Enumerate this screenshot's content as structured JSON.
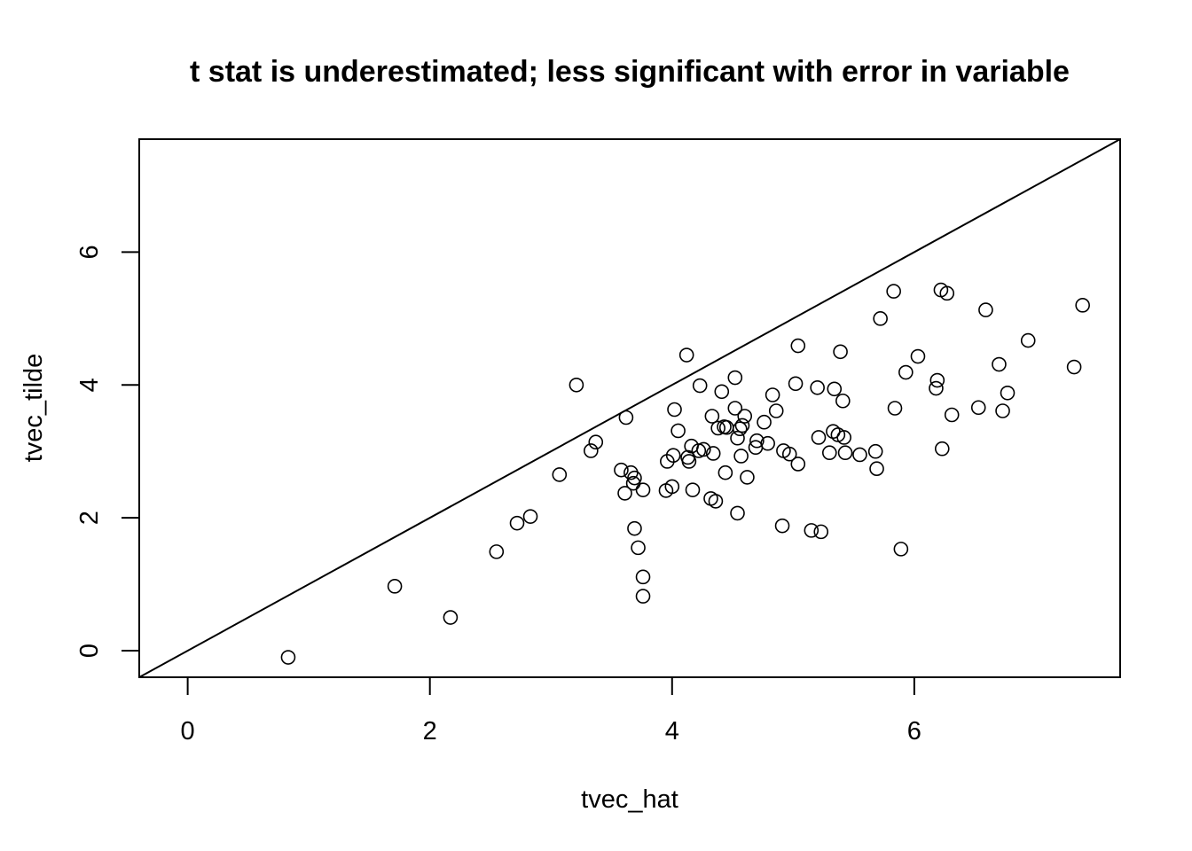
{
  "chart_data": {
    "type": "scatter",
    "title": "t stat is underestimated; less significant with error in variable",
    "xlabel": "tvec_hat",
    "ylabel": "tvec_tilde",
    "xlim": [
      -0.4,
      7.7
    ],
    "ylim": [
      -0.4,
      7.7
    ],
    "xticks": [
      0,
      2,
      4,
      6
    ],
    "yticks": [
      0,
      2,
      4,
      6
    ],
    "xtick_labels": [
      "0",
      "2",
      "4",
      "6"
    ],
    "ytick_labels": [
      "0",
      "2",
      "4",
      "6"
    ],
    "grid": false,
    "reference_line": {
      "slope": 1,
      "intercept": 0
    },
    "points": [
      [
        0.83,
        -0.1
      ],
      [
        1.71,
        0.97
      ],
      [
        2.17,
        0.5
      ],
      [
        2.55,
        1.49
      ],
      [
        2.72,
        1.92
      ],
      [
        2.83,
        2.02
      ],
      [
        3.07,
        2.65
      ],
      [
        3.21,
        4.0
      ],
      [
        3.33,
        3.01
      ],
      [
        3.37,
        3.14
      ],
      [
        3.58,
        2.72
      ],
      [
        3.61,
        2.37
      ],
      [
        3.62,
        3.51
      ],
      [
        3.66,
        2.68
      ],
      [
        3.68,
        2.52
      ],
      [
        3.69,
        2.6
      ],
      [
        3.69,
        1.84
      ],
      [
        3.72,
        1.55
      ],
      [
        3.76,
        2.42
      ],
      [
        3.76,
        1.11
      ],
      [
        3.76,
        0.82
      ],
      [
        3.95,
        2.41
      ],
      [
        3.96,
        2.85
      ],
      [
        4.0,
        2.47
      ],
      [
        4.01,
        2.94
      ],
      [
        4.02,
        3.63
      ],
      [
        4.05,
        3.31
      ],
      [
        4.12,
        4.45
      ],
      [
        4.13,
        2.91
      ],
      [
        4.14,
        2.85
      ],
      [
        4.16,
        3.08
      ],
      [
        4.17,
        2.42
      ],
      [
        4.22,
        3.01
      ],
      [
        4.23,
        3.99
      ],
      [
        4.26,
        3.03
      ],
      [
        4.32,
        2.29
      ],
      [
        4.33,
        3.53
      ],
      [
        4.34,
        2.97
      ],
      [
        4.36,
        2.25
      ],
      [
        4.38,
        3.35
      ],
      [
        4.41,
        3.9
      ],
      [
        4.43,
        3.37
      ],
      [
        4.44,
        2.68
      ],
      [
        4.45,
        3.36
      ],
      [
        4.52,
        4.11
      ],
      [
        4.52,
        3.65
      ],
      [
        4.54,
        3.2
      ],
      [
        4.54,
        2.07
      ],
      [
        4.56,
        3.34
      ],
      [
        4.57,
        2.93
      ],
      [
        4.58,
        3.39
      ],
      [
        4.6,
        3.53
      ],
      [
        4.62,
        2.61
      ],
      [
        4.69,
        3.06
      ],
      [
        4.7,
        3.16
      ],
      [
        4.76,
        3.44
      ],
      [
        4.79,
        3.12
      ],
      [
        4.83,
        3.85
      ],
      [
        4.86,
        3.61
      ],
      [
        4.91,
        1.88
      ],
      [
        4.92,
        3.01
      ],
      [
        4.97,
        2.96
      ],
      [
        5.02,
        4.02
      ],
      [
        5.04,
        4.59
      ],
      [
        5.04,
        2.81
      ],
      [
        5.15,
        1.81
      ],
      [
        5.2,
        3.96
      ],
      [
        5.21,
        3.21
      ],
      [
        5.23,
        1.79
      ],
      [
        5.3,
        2.98
      ],
      [
        5.33,
        3.3
      ],
      [
        5.34,
        3.94
      ],
      [
        5.37,
        3.25
      ],
      [
        5.39,
        4.5
      ],
      [
        5.41,
        3.76
      ],
      [
        5.42,
        3.21
      ],
      [
        5.43,
        2.98
      ],
      [
        5.55,
        2.95
      ],
      [
        5.68,
        3.0
      ],
      [
        5.69,
        2.74
      ],
      [
        5.72,
        5.0
      ],
      [
        5.83,
        5.41
      ],
      [
        5.84,
        3.65
      ],
      [
        5.89,
        1.53
      ],
      [
        5.93,
        4.19
      ],
      [
        6.03,
        4.43
      ],
      [
        6.18,
        3.95
      ],
      [
        6.19,
        4.07
      ],
      [
        6.22,
        5.43
      ],
      [
        6.23,
        3.04
      ],
      [
        6.27,
        5.38
      ],
      [
        6.31,
        3.55
      ],
      [
        6.53,
        3.66
      ],
      [
        6.59,
        5.13
      ],
      [
        6.7,
        4.31
      ],
      [
        6.73,
        3.61
      ],
      [
        6.77,
        3.88
      ],
      [
        6.94,
        4.67
      ],
      [
        7.32,
        4.27
      ],
      [
        7.39,
        5.2
      ]
    ]
  }
}
